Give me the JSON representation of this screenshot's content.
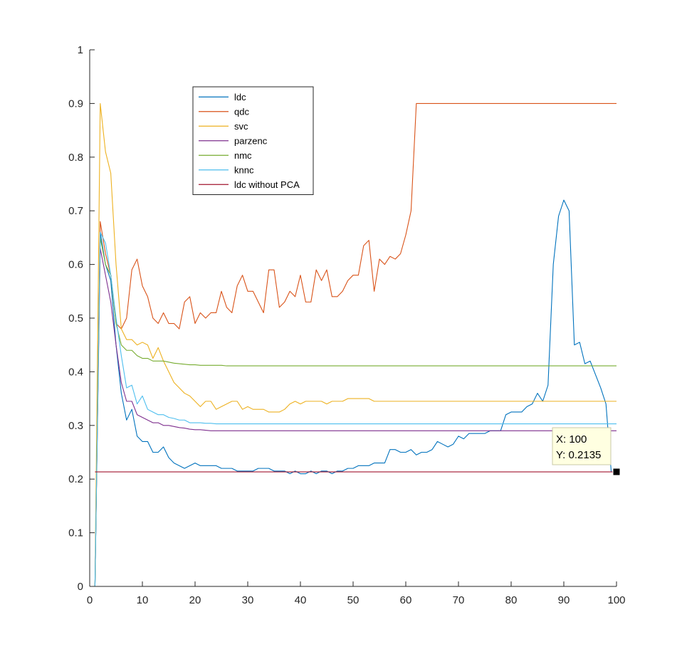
{
  "chart_data": {
    "type": "line",
    "title": "",
    "xlabel": "",
    "ylabel": "",
    "xlim": [
      0,
      100
    ],
    "ylim": [
      0,
      1
    ],
    "x_ticks": [
      "0",
      "10",
      "20",
      "30",
      "40",
      "50",
      "60",
      "70",
      "80",
      "90",
      "100"
    ],
    "y_ticks": [
      "0",
      "0.1",
      "0.2",
      "0.3",
      "0.4",
      "0.5",
      "0.6",
      "0.7",
      "0.8",
      "0.9",
      "1"
    ],
    "grid": false,
    "legend_position": "upper-left inside",
    "series": [
      {
        "name": "ldc",
        "color": "#0072BD",
        "values": [
          0,
          0.66,
          0.6,
          0.57,
          0.45,
          0.36,
          0.31,
          0.33,
          0.28,
          0.27,
          0.27,
          0.25,
          0.25,
          0.26,
          0.24,
          0.23,
          0.225,
          0.22,
          0.225,
          0.23,
          0.225,
          0.225,
          0.225,
          0.225,
          0.22,
          0.22,
          0.22,
          0.215,
          0.215,
          0.215,
          0.215,
          0.22,
          0.22,
          0.22,
          0.215,
          0.215,
          0.215,
          0.21,
          0.215,
          0.21,
          0.21,
          0.215,
          0.21,
          0.215,
          0.215,
          0.21,
          0.215,
          0.215,
          0.22,
          0.22,
          0.225,
          0.225,
          0.225,
          0.23,
          0.23,
          0.23,
          0.255,
          0.255,
          0.25,
          0.25,
          0.255,
          0.245,
          0.25,
          0.25,
          0.255,
          0.27,
          0.265,
          0.26,
          0.265,
          0.28,
          0.275,
          0.285,
          0.285,
          0.285,
          0.285,
          0.29,
          0.29,
          0.29,
          0.32,
          0.325,
          0.325,
          0.325,
          0.335,
          0.34,
          0.36,
          0.345,
          0.375,
          0.6,
          0.69,
          0.72,
          0.7,
          0.45,
          0.455,
          0.415,
          0.42,
          0.395,
          0.37,
          0.34,
          0.2135
        ]
      },
      {
        "name": "qdc",
        "color": "#D95319",
        "values": [
          0,
          0.68,
          0.62,
          0.58,
          0.49,
          0.48,
          0.5,
          0.59,
          0.61,
          0.56,
          0.54,
          0.5,
          0.49,
          0.51,
          0.49,
          0.49,
          0.48,
          0.53,
          0.54,
          0.49,
          0.51,
          0.5,
          0.51,
          0.51,
          0.55,
          0.52,
          0.51,
          0.56,
          0.58,
          0.55,
          0.55,
          0.53,
          0.51,
          0.59,
          0.59,
          0.52,
          0.53,
          0.55,
          0.54,
          0.58,
          0.53,
          0.53,
          0.59,
          0.57,
          0.59,
          0.54,
          0.54,
          0.55,
          0.57,
          0.58,
          0.58,
          0.635,
          0.645,
          0.55,
          0.61,
          0.6,
          0.615,
          0.61,
          0.62,
          0.655,
          0.7,
          0.9,
          0.9,
          0.9,
          0.9,
          0.9,
          0.9,
          0.9,
          0.9,
          0.9,
          0.9,
          0.9,
          0.9,
          0.9,
          0.9,
          0.9,
          0.9,
          0.9,
          0.9,
          0.9,
          0.9,
          0.9,
          0.9,
          0.9,
          0.9,
          0.9,
          0.9,
          0.9,
          0.9,
          0.9,
          0.9,
          0.9,
          0.9,
          0.9,
          0.9,
          0.9,
          0.9,
          0.9,
          0.9,
          0.9
        ]
      },
      {
        "name": "svc",
        "color": "#EDB120",
        "values": [
          0,
          0.9,
          0.81,
          0.77,
          0.6,
          0.48,
          0.46,
          0.46,
          0.45,
          0.455,
          0.45,
          0.425,
          0.445,
          0.42,
          0.4,
          0.38,
          0.37,
          0.36,
          0.355,
          0.345,
          0.335,
          0.345,
          0.345,
          0.33,
          0.335,
          0.34,
          0.345,
          0.345,
          0.33,
          0.335,
          0.33,
          0.33,
          0.33,
          0.325,
          0.325,
          0.325,
          0.33,
          0.34,
          0.345,
          0.34,
          0.345,
          0.345,
          0.345,
          0.345,
          0.34,
          0.345,
          0.345,
          0.345,
          0.35,
          0.35,
          0.35,
          0.35,
          0.35,
          0.345,
          0.345,
          0.345,
          0.345,
          0.345,
          0.345,
          0.345,
          0.345,
          0.345,
          0.345,
          0.345,
          0.345,
          0.345,
          0.345,
          0.345,
          0.345,
          0.345,
          0.345,
          0.345,
          0.345,
          0.345,
          0.345,
          0.345,
          0.345,
          0.345,
          0.345,
          0.345,
          0.345,
          0.345,
          0.345,
          0.345,
          0.345,
          0.345,
          0.345,
          0.345,
          0.345,
          0.345,
          0.345,
          0.345,
          0.345,
          0.345,
          0.345,
          0.345,
          0.345,
          0.345,
          0.345,
          0.345
        ]
      },
      {
        "name": "parzenc",
        "color": "#7E2F8E",
        "values": [
          0,
          0.63,
          0.58,
          0.53,
          0.45,
          0.38,
          0.345,
          0.345,
          0.32,
          0.315,
          0.31,
          0.305,
          0.305,
          0.3,
          0.3,
          0.298,
          0.296,
          0.295,
          0.293,
          0.292,
          0.292,
          0.291,
          0.29,
          0.29,
          0.29,
          0.29,
          0.29,
          0.29,
          0.29,
          0.29,
          0.29,
          0.29,
          0.29,
          0.29,
          0.29,
          0.29,
          0.29,
          0.29,
          0.29,
          0.29,
          0.29,
          0.29,
          0.29,
          0.29,
          0.29,
          0.29,
          0.29,
          0.29,
          0.29,
          0.29,
          0.29,
          0.29,
          0.29,
          0.29,
          0.29,
          0.29,
          0.29,
          0.29,
          0.29,
          0.29,
          0.29,
          0.29,
          0.29,
          0.29,
          0.29,
          0.29,
          0.29,
          0.29,
          0.29,
          0.29,
          0.29,
          0.29,
          0.29,
          0.29,
          0.29,
          0.29,
          0.29,
          0.29,
          0.29,
          0.29,
          0.29,
          0.29,
          0.29,
          0.29,
          0.29,
          0.29,
          0.29,
          0.29,
          0.29,
          0.29,
          0.29,
          0.29,
          0.29,
          0.29,
          0.29,
          0.29,
          0.29,
          0.29,
          0.29,
          0.29
        ]
      },
      {
        "name": "nmc",
        "color": "#77AC30",
        "values": [
          0,
          0.65,
          0.6,
          0.58,
          0.49,
          0.45,
          0.44,
          0.44,
          0.43,
          0.425,
          0.425,
          0.42,
          0.42,
          0.42,
          0.418,
          0.416,
          0.415,
          0.414,
          0.413,
          0.413,
          0.412,
          0.412,
          0.412,
          0.412,
          0.412,
          0.411,
          0.411,
          0.411,
          0.411,
          0.411,
          0.411,
          0.411,
          0.411,
          0.411,
          0.411,
          0.411,
          0.411,
          0.411,
          0.411,
          0.411,
          0.411,
          0.411,
          0.411,
          0.411,
          0.411,
          0.411,
          0.411,
          0.411,
          0.411,
          0.411,
          0.411,
          0.411,
          0.411,
          0.411,
          0.411,
          0.411,
          0.411,
          0.411,
          0.411,
          0.411,
          0.411,
          0.411,
          0.411,
          0.411,
          0.411,
          0.411,
          0.411,
          0.411,
          0.411,
          0.411,
          0.411,
          0.411,
          0.411,
          0.411,
          0.411,
          0.411,
          0.411,
          0.411,
          0.411,
          0.411,
          0.411,
          0.411,
          0.411,
          0.411,
          0.411,
          0.411,
          0.411,
          0.411,
          0.411,
          0.411,
          0.411,
          0.411,
          0.411,
          0.411,
          0.411,
          0.411,
          0.411,
          0.411,
          0.411,
          0.411
        ]
      },
      {
        "name": "knnc",
        "color": "#4DBEEE",
        "values": [
          0,
          0.66,
          0.64,
          0.58,
          0.5,
          0.43,
          0.37,
          0.375,
          0.34,
          0.355,
          0.33,
          0.325,
          0.32,
          0.32,
          0.315,
          0.313,
          0.31,
          0.31,
          0.305,
          0.305,
          0.305,
          0.304,
          0.304,
          0.303,
          0.303,
          0.303,
          0.303,
          0.303,
          0.303,
          0.303,
          0.303,
          0.303,
          0.303,
          0.303,
          0.303,
          0.303,
          0.303,
          0.303,
          0.303,
          0.303,
          0.303,
          0.303,
          0.303,
          0.303,
          0.303,
          0.303,
          0.303,
          0.303,
          0.303,
          0.303,
          0.303,
          0.303,
          0.303,
          0.303,
          0.303,
          0.303,
          0.303,
          0.303,
          0.303,
          0.303,
          0.303,
          0.303,
          0.303,
          0.303,
          0.303,
          0.303,
          0.303,
          0.303,
          0.303,
          0.303,
          0.303,
          0.303,
          0.303,
          0.303,
          0.303,
          0.303,
          0.303,
          0.303,
          0.303,
          0.303,
          0.303,
          0.303,
          0.303,
          0.303,
          0.303,
          0.303,
          0.303,
          0.303,
          0.303,
          0.303,
          0.303,
          0.303,
          0.303,
          0.303,
          0.303,
          0.303,
          0.303,
          0.303,
          0.303,
          0.303
        ]
      },
      {
        "name": "ldc without PCA",
        "color": "#A2142F",
        "values": [
          0.2135,
          0.2135,
          0.2135,
          0.2135,
          0.2135,
          0.2135,
          0.2135,
          0.2135,
          0.2135,
          0.2135,
          0.2135,
          0.2135,
          0.2135,
          0.2135,
          0.2135,
          0.2135,
          0.2135,
          0.2135,
          0.2135,
          0.2135,
          0.2135,
          0.2135,
          0.2135,
          0.2135,
          0.2135,
          0.2135,
          0.2135,
          0.2135,
          0.2135,
          0.2135,
          0.2135,
          0.2135,
          0.2135,
          0.2135,
          0.2135,
          0.2135,
          0.2135,
          0.2135,
          0.2135,
          0.2135,
          0.2135,
          0.2135,
          0.2135,
          0.2135,
          0.2135,
          0.2135,
          0.2135,
          0.2135,
          0.2135,
          0.2135,
          0.2135,
          0.2135,
          0.2135,
          0.2135,
          0.2135,
          0.2135,
          0.2135,
          0.2135,
          0.2135,
          0.2135,
          0.2135,
          0.2135,
          0.2135,
          0.2135,
          0.2135,
          0.2135,
          0.2135,
          0.2135,
          0.2135,
          0.2135,
          0.2135,
          0.2135,
          0.2135,
          0.2135,
          0.2135,
          0.2135,
          0.2135,
          0.2135,
          0.2135,
          0.2135,
          0.2135,
          0.2135,
          0.2135,
          0.2135,
          0.2135,
          0.2135,
          0.2135,
          0.2135,
          0.2135,
          0.2135,
          0.2135,
          0.2135,
          0.2135,
          0.2135,
          0.2135,
          0.2135,
          0.2135,
          0.2135,
          0.2135,
          0.2135
        ]
      }
    ],
    "datatip": {
      "x": 100,
      "y": 0.2135,
      "x_text": "X: 100",
      "y_text": "Y: 0.2135"
    }
  }
}
